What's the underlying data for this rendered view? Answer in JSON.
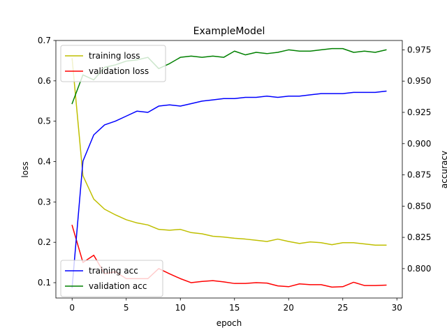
{
  "chart_data": {
    "type": "line",
    "title": "ExampleModel",
    "xlabel": "epoch",
    "ylabel_left": "loss",
    "ylabel_right": "accuracy",
    "xlim": [
      -1.5,
      30.5
    ],
    "ylim_left": [
      0.062,
      0.7
    ],
    "ylim_right": [
      0.7765,
      0.9825
    ],
    "x_ticks": [
      0,
      5,
      10,
      15,
      20,
      25,
      30
    ],
    "y_ticks_left": [
      0.1,
      0.2,
      0.3,
      0.4,
      0.5,
      0.6,
      0.7
    ],
    "y_ticks_right": [
      0.8,
      0.825,
      0.85,
      0.875,
      0.9,
      0.925,
      0.95,
      0.975
    ],
    "x": [
      0,
      1,
      2,
      3,
      4,
      5,
      6,
      7,
      8,
      9,
      10,
      11,
      12,
      13,
      14,
      15,
      16,
      17,
      18,
      19,
      20,
      21,
      22,
      23,
      24,
      25,
      26,
      27,
      28,
      29
    ],
    "series_left": [
      {
        "name": "training loss",
        "color": "#bfbf00",
        "values": [
          0.655,
          0.365,
          0.307,
          0.282,
          0.268,
          0.256,
          0.248,
          0.243,
          0.232,
          0.23,
          0.232,
          0.224,
          0.221,
          0.215,
          0.213,
          0.21,
          0.208,
          0.205,
          0.202,
          0.208,
          0.202,
          0.197,
          0.201,
          0.199,
          0.194,
          0.199,
          0.199,
          0.196,
          0.193,
          0.193
        ]
      },
      {
        "name": "validation loss",
        "color": "#ff0000",
        "values": [
          0.242,
          0.15,
          0.168,
          0.122,
          0.127,
          0.11,
          0.11,
          0.11,
          0.135,
          0.122,
          0.11,
          0.1,
          0.103,
          0.105,
          0.102,
          0.098,
          0.098,
          0.1,
          0.099,
          0.092,
          0.09,
          0.097,
          0.095,
          0.095,
          0.089,
          0.09,
          0.101,
          0.093,
          0.093,
          0.094
        ]
      }
    ],
    "series_right": [
      {
        "name": "training acc",
        "color": "#0000ff",
        "values": [
          0.785,
          0.886,
          0.907,
          0.915,
          0.918,
          0.922,
          0.926,
          0.925,
          0.93,
          0.931,
          0.93,
          0.932,
          0.934,
          0.935,
          0.936,
          0.936,
          0.937,
          0.937,
          0.938,
          0.937,
          0.938,
          0.938,
          0.939,
          0.94,
          0.94,
          0.94,
          0.941,
          0.941,
          0.941,
          0.942
        ]
      },
      {
        "name": "validation acc",
        "color": "#008000",
        "values": [
          0.932,
          0.955,
          0.951,
          0.961,
          0.963,
          0.966,
          0.967,
          0.969,
          0.96,
          0.964,
          0.969,
          0.97,
          0.969,
          0.97,
          0.969,
          0.974,
          0.971,
          0.973,
          0.972,
          0.973,
          0.975,
          0.974,
          0.974,
          0.975,
          0.976,
          0.976,
          0.973,
          0.974,
          0.973,
          0.975
        ]
      }
    ],
    "legend_left_placement": "upper-left",
    "legend_right_placement": "lower-left",
    "grid": false
  }
}
